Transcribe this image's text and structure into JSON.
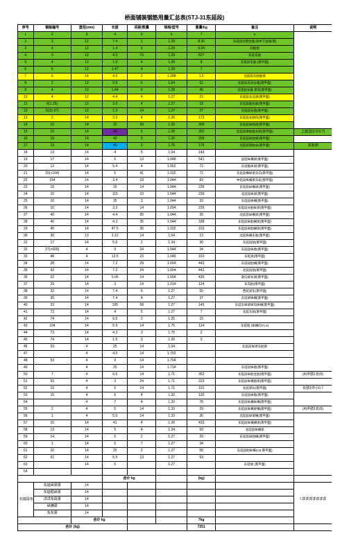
{
  "title": "桥面铺装钢筋用量汇总表(STJ-31东延段)",
  "headers": [
    "序号",
    "钢板编号",
    "直径(mm)",
    "长度",
    "间距/数量",
    "规格/型号",
    "重量/kg",
    "备注",
    "说明"
  ],
  "colors": {
    "green": "#6ec529",
    "yellow": "#ffff00",
    "purple": "#7030a0",
    "cyan": "#00b0f0",
    "white": "#ffffff"
  },
  "rows": [
    {
      "fill": "green",
      "c": [
        "1",
        "2",
        "3",
        "4",
        "5",
        "6",
        "7",
        "8",
        ""
      ]
    },
    {
      "fill": "green",
      "c": [
        "2",
        "3",
        "12",
        "7.4",
        "1",
        "1.29",
        "8.30",
        "东延段北侧主肋,同中下边坡(南)",
        ""
      ],
      "noteSpan": true
    },
    {
      "fill": "green",
      "c": [
        "3",
        "4",
        "12",
        "1.4",
        "5",
        "1.29",
        "9.04",
        "同框架",
        ""
      ]
    },
    {
      "fill": "green",
      "c": [
        "4",
        "3",
        "12",
        "4.3",
        "73",
        "1.29",
        "627",
        "东延东肋",
        ""
      ]
    },
    {
      "fill": "green",
      "c": [
        "5",
        "4",
        "12",
        "1.9",
        "4",
        "1.29",
        "8",
        "东延段东肋 (南平面)",
        ""
      ]
    },
    {
      "fill": "green",
      "c": [
        "6",
        "5",
        "12",
        "1.47",
        "4",
        "1.29",
        "7",
        "",
        ""
      ]
    },
    {
      "fill": "yellow",
      "c": [
        "7",
        "6",
        "14",
        "4.5",
        "2",
        "1.208",
        "1.5",
        "北延段东肋肋梁",
        ""
      ]
    },
    {
      "fill": "green",
      "c": [
        "8",
        "2",
        "12",
        "0.9",
        "6",
        "1.04",
        "51",
        "北延段东北长框(南平面)",
        ""
      ]
    },
    {
      "fill": "green",
      "c": [
        "9",
        "4",
        "12",
        "1.44",
        "6",
        "1.28",
        "45",
        "东延段长框 梁向(南平面)",
        ""
      ]
    },
    {
      "fill": "yellow",
      "c": [
        "10",
        "4",
        "12",
        "4.4",
        "4",
        "1.27",
        "23",
        "东延段东北梁(南平面)",
        ""
      ]
    },
    {
      "fill": "green",
      "c": [
        "11",
        "6(1.25)",
        "12",
        "3.0",
        "4",
        "1.27",
        "15",
        "东延段框长肋(南平面)",
        ""
      ]
    },
    {
      "fill": "green",
      "c": [
        "12",
        "5(32-27)",
        "12",
        "1.5",
        "14",
        "1.27",
        "27",
        "东延段长肋(南平面)",
        ""
      ]
    },
    {
      "fill": "yellow",
      "c": [
        "13",
        "2",
        "14",
        "3.3",
        "4",
        "1.26",
        "173",
        "东延段长肋向(南平面)",
        ""
      ]
    },
    {
      "fill": "green",
      "c": [
        "14",
        "10",
        "14",
        "32",
        "43",
        "1.25",
        "309",
        "东延段纵肋梁(南平面)",
        ""
      ]
    },
    {
      "fill": "green",
      "c": [
        "15",
        "10",
        "14",
        "48",
        "5",
        "1.28",
        "302",
        "北延段梁肋框长肋(南平面)",
        "上延边(2.6-0.7)"
      ],
      "c4fill": "purple"
    },
    {
      "fill": "green",
      "c": [
        "16",
        "10",
        "14",
        "40",
        "5",
        "1.26",
        "258",
        "东延段纵肋梁(南平面)",
        ""
      ]
    },
    {
      "fill": "green",
      "c": [
        "17",
        "13",
        "14",
        "40",
        "2",
        "1.75",
        "175",
        "北延段梁肋长(南平面)",
        "实际测"
      ],
      "c4fill": "cyan"
    },
    {
      "fill": "white",
      "c": [
        "18",
        "13",
        "14",
        "4",
        "5",
        "1.04",
        "143",
        "",
        ""
      ]
    },
    {
      "fill": "white",
      "c": [
        "19",
        "17",
        "14",
        "5",
        "13",
        "1.048",
        "541",
        "战延纵横梁(南平面)",
        ""
      ]
    },
    {
      "fill": "white",
      "c": [
        "20",
        "13",
        "14",
        "5.4",
        "4",
        "1.052",
        "72",
        "东延框纵梁(南平面)",
        ""
      ]
    },
    {
      "fill": "white",
      "c": [
        "21",
        "15(>164)",
        "14",
        "5",
        "41",
        "1.032",
        "72",
        "东延段横纵梁东向(南平面)",
        ""
      ]
    },
    {
      "fill": "white",
      "c": [
        "22",
        "154",
        "14",
        "3.4",
        "19",
        "1.044",
        "83",
        "中延段纵横梁东段(南平面)",
        ""
      ]
    },
    {
      "fill": "white",
      "c": [
        "23",
        "15",
        "14",
        "15",
        "14",
        "1.044",
        "239",
        "东延段纵横梁(南平面)",
        ""
      ]
    },
    {
      "fill": "white",
      "c": [
        "24",
        "10",
        "14",
        "115",
        "19",
        "1.044",
        "239",
        "北延段纵梁(南平面)",
        ""
      ]
    },
    {
      "fill": "white",
      "c": [
        "25",
        "10",
        "14",
        "35",
        "3",
        "1.044",
        "33",
        "东延段纵横(南平面)",
        ""
      ]
    },
    {
      "fill": "white",
      "c": [
        "26",
        "10",
        "14",
        "3.3",
        "14",
        "1.004",
        "235",
        "东延段长肋纵梁(南平面)",
        ""
      ]
    },
    {
      "fill": "white",
      "c": [
        "27",
        "40",
        "14",
        "4.4",
        "35",
        "1.044",
        "35",
        "北延段纵横梁(南平面)",
        ""
      ]
    },
    {
      "fill": "white",
      "c": [
        "28",
        "40",
        "14",
        "4.3",
        "35",
        "1.044",
        "338",
        "东延段纵肋横梁(南平面)",
        ""
      ]
    },
    {
      "fill": "white",
      "c": [
        "29",
        "40",
        "14",
        "47.5",
        "35",
        "1.032",
        "103",
        "东延段纵肋横梁(南平面)",
        ""
      ]
    },
    {
      "fill": "white",
      "c": [
        "30",
        "30",
        "13",
        "1.12",
        "14",
        "1.04",
        "13",
        "北延纵横东肋(南平面)",
        ""
      ]
    },
    {
      "fill": "white",
      "c": [
        "31",
        "17",
        "14",
        "5.6",
        "2",
        "1.34",
        "30",
        "东延段肋(南平面)",
        ""
      ]
    },
    {
      "fill": "white",
      "c": [
        "32",
        "27(>600)",
        "4",
        "9",
        "24",
        "1.044",
        "34",
        "东延段纵肋(南平面)",
        ""
      ]
    },
    {
      "fill": "white",
      "c": [
        "33",
        "48",
        "4",
        "13.5",
        "23",
        "1.049",
        "163",
        "东延梁(南平面)",
        ""
      ]
    },
    {
      "fill": "white",
      "c": [
        "34",
        "28",
        "14",
        "7.2",
        "29",
        "1.004",
        "443",
        "东延段肋横(南平面)",
        ""
      ]
    },
    {
      "fill": "white",
      "c": [
        "35",
        "43",
        "14",
        "7.2",
        "24",
        "1.004",
        "442",
        "北延段肋(南平面)",
        ""
      ]
    },
    {
      "fill": "white",
      "c": [
        "36",
        "02",
        "14",
        "5.05",
        "14",
        "1.004",
        "435",
        "意向梁长梁(南平面)",
        ""
      ]
    },
    {
      "fill": "white",
      "c": [
        "37",
        "29",
        "14",
        "3",
        "14",
        "1.014",
        "124",
        "东向肋(南平面)",
        ""
      ]
    },
    {
      "fill": "white",
      "c": [
        "38",
        "32",
        "14",
        "7.4",
        "6",
        "1.27",
        "55",
        "西延梁东(南平面)",
        ""
      ]
    },
    {
      "fill": "white",
      "c": [
        "39",
        "30",
        "14",
        "7.4",
        "4",
        "1.27",
        "37",
        "东延梁纵横(南平面)",
        ""
      ]
    },
    {
      "fill": "white",
      "c": [
        "40",
        "33",
        "14",
        "195",
        "58",
        "1.27",
        "145",
        "东延东纵梁纵向纵横(南平面)",
        ""
      ]
    },
    {
      "fill": "white",
      "c": [
        "41",
        "73",
        "14",
        "4",
        "5",
        "1.27",
        "7",
        "北延东肋(南平面)",
        ""
      ]
    },
    {
      "fill": "white",
      "c": [
        "42",
        "74",
        "14",
        "6.5",
        "2",
        "1.25",
        "15",
        "",
        ""
      ]
    },
    {
      "fill": "white",
      "c": [
        "43",
        "104",
        "14",
        "5.9",
        "14",
        "1.75",
        "114",
        "东延框 (纵横向T1.5)",
        ""
      ]
    },
    {
      "fill": "white",
      "c": [
        "44",
        "73",
        "14",
        "4.3",
        "3",
        "1.75",
        "2",
        "",
        ""
      ]
    },
    {
      "fill": "white",
      "c": [
        "45",
        "74",
        "14",
        "1.5",
        "3",
        "1.26",
        "3",
        "",
        ""
      ]
    },
    {
      "fill": "white",
      "c": [
        "46",
        "53",
        "4",
        "25",
        "14",
        "1.04",
        "",
        "北延段纵梁东肋梁",
        ""
      ]
    },
    {
      "fill": "white",
      "c": [
        "47",
        "",
        "4",
        "4.5",
        "14",
        "1.702",
        "",
        "",
        ""
      ]
    },
    {
      "fill": "white",
      "c": [
        "48",
        "53",
        "4",
        "9",
        "14",
        "1.704",
        "",
        "",
        ""
      ]
    },
    {
      "fill": "white",
      "c": [
        "49",
        "",
        "4",
        "25",
        "14",
        "1.714",
        "",
        "东延段纵肋(南平面)",
        ""
      ]
    },
    {
      "fill": "white",
      "c": [
        "50",
        "7",
        "4",
        "6.5",
        "14",
        "1.71",
        "352",
        "东延段纵肋主肋(南平面)",
        "(4)中肋1长(6)"
      ]
    },
    {
      "fill": "white",
      "c": [
        "51",
        "53",
        "4",
        "3",
        "24",
        "1.71",
        "223",
        "东延段纵横肋梁(南平面)",
        ""
      ]
    },
    {
      "fill": "white",
      "c": [
        "52",
        "10",
        "4",
        "5",
        "14",
        "1.71",
        "101",
        "北延梁长(南平面)",
        "长肋1中小0.7"
      ]
    },
    {
      "fill": "white",
      "c": [
        "53",
        "15",
        "4",
        "6",
        "4",
        "1.32",
        "130",
        "东延段纵肋(南平面)",
        ""
      ]
    },
    {
      "fill": "white",
      "c": [
        "54",
        "",
        "4",
        "7",
        "4",
        "1.32",
        "78",
        "东延段纵横纵横(南平面)",
        ""
      ]
    },
    {
      "fill": "white",
      "c": [
        "55",
        "2",
        "4",
        "5",
        "14",
        "1.33",
        "29",
        "东延段纵横梁横(南平面)",
        "(4)中肋1长(6)"
      ]
    },
    {
      "fill": "white",
      "c": [
        "56",
        "1",
        "4",
        "5.5",
        "14",
        "1.33",
        "36",
        "北延段纵梁横(南平面)",
        ""
      ]
    },
    {
      "fill": "white",
      "c": [
        "57",
        "10",
        "14",
        "41",
        "4",
        "1.26",
        "433",
        "东延段纵横横梁(南平面)",
        ""
      ]
    },
    {
      "fill": "white",
      "c": [
        "58",
        "13",
        "14",
        "5",
        "4",
        "1.24",
        "59",
        "北延段纵横梁",
        ""
      ]
    },
    {
      "fill": "white",
      "c": [
        "59",
        "14",
        "14",
        "5",
        "2",
        "1.27",
        "29",
        "东延段纵肋横(南平面)",
        ""
      ]
    },
    {
      "fill": "white",
      "c": [
        "60",
        "1",
        "14",
        "5",
        "7",
        "1.27",
        "34",
        "",
        ""
      ]
    },
    {
      "fill": "white",
      "c": [
        "61",
        "10",
        "14",
        "25",
        "2",
        "1.27",
        "58",
        "东延段肋纵横(CB:南平面)",
        ""
      ]
    },
    {
      "fill": "white",
      "c": [
        "62",
        "01",
        "14",
        "5.5",
        "13",
        "1.27",
        "93",
        "",
        ""
      ]
    },
    {
      "fill": "white",
      "c": [
        "63",
        "",
        "14",
        "5",
        "",
        "1.27",
        "",
        "东延线 (南平面)",
        ""
      ]
    },
    {
      "fill": "white",
      "c": [
        "64",
        "",
        "",
        "",
        "",
        "",
        "",
        "",
        ""
      ]
    }
  ],
  "footer": {
    "subtotal_label": "合计 kg",
    "subtotal_val": "7251",
    "grandtotal_label": "合计 (kg)",
    "grandtotal_val_label": "(kg)",
    "grandtotal_val": "7kg",
    "merged_label": "北延段长梁",
    "merged_note": "I.详详详详详详详",
    "rows": [
      [
        "",
        "东延纵梁梁",
        "14",
        "",
        "",
        "",
        "",
        "",
        ""
      ],
      [
        "",
        "东延框纵梁",
        "14",
        "",
        "",
        "",
        "",
        "",
        ""
      ],
      [
        "",
        "详详东段梁",
        "14",
        "",
        "",
        "",
        "",
        "",
        ""
      ],
      [
        "",
        "纵横梁",
        "14",
        "",
        "",
        "",
        "",
        "",
        ""
      ],
      [
        "",
        "东东梁",
        "14",
        "",
        "",
        "",
        "",
        "",
        ""
      ]
    ]
  }
}
